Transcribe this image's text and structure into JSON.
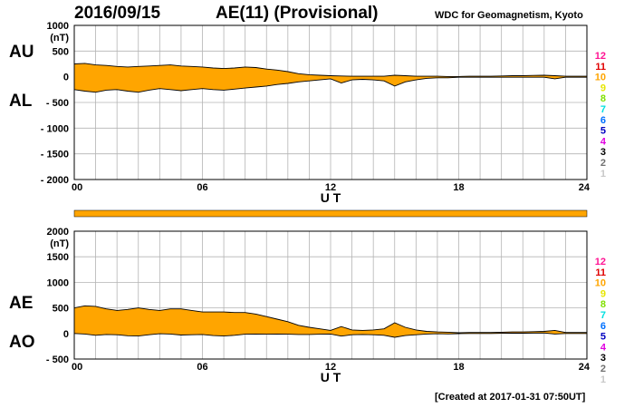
{
  "header": {
    "date": "2016/09/15",
    "index_title": "AE(11) (Provisional)",
    "source": "WDC for Geomagnetism, Kyoto"
  },
  "footer": {
    "created": "[Created at 2017-01-31 07:50UT]"
  },
  "colors": {
    "fill": "#ffa500",
    "outline": "#000000",
    "grid": "#b4b4b4"
  },
  "chart_data": [
    {
      "type": "area",
      "panel": "AU/AL",
      "series_labels": [
        "AU",
        "AL"
      ],
      "unit_label": "(nT)",
      "xlabel": "U T",
      "xlim": [
        0,
        24
      ],
      "ylim": [
        -2000,
        1000
      ],
      "x_ticks": [
        "00",
        "06",
        "12",
        "18",
        "24"
      ],
      "y_ticks": [
        "1000",
        "500",
        "0",
        "- 500",
        "- 1000",
        "- 1500",
        "- 2000"
      ],
      "x": [
        0,
        0.5,
        1,
        1.5,
        2,
        2.5,
        3,
        3.5,
        4,
        4.5,
        5,
        5.5,
        6,
        6.5,
        7,
        7.5,
        8,
        8.5,
        9,
        9.5,
        10,
        10.5,
        11,
        11.5,
        12,
        12.5,
        13,
        13.5,
        14,
        14.5,
        15,
        15.5,
        16,
        16.5,
        17,
        17.5,
        18,
        18.5,
        19,
        19.5,
        20,
        20.5,
        21,
        21.5,
        22,
        22.5,
        23,
        23.5,
        24
      ],
      "series": [
        {
          "name": "AU",
          "values": [
            250,
            260,
            230,
            220,
            200,
            190,
            200,
            210,
            220,
            230,
            210,
            200,
            190,
            170,
            160,
            170,
            190,
            180,
            150,
            130,
            100,
            60,
            40,
            30,
            20,
            15,
            10,
            10,
            10,
            10,
            30,
            20,
            10,
            10,
            10,
            5,
            5,
            10,
            10,
            10,
            15,
            20,
            20,
            25,
            30,
            20,
            10,
            10,
            10
          ]
        },
        {
          "name": "AL",
          "values": [
            -250,
            -280,
            -300,
            -260,
            -250,
            -280,
            -300,
            -260,
            -230,
            -250,
            -270,
            -250,
            -230,
            -250,
            -260,
            -240,
            -220,
            -200,
            -180,
            -150,
            -130,
            -100,
            -80,
            -60,
            -40,
            -120,
            -60,
            -50,
            -60,
            -80,
            -180,
            -100,
            -60,
            -30,
            -20,
            -20,
            -10,
            -10,
            -10,
            -10,
            -10,
            -10,
            -10,
            -10,
            -10,
            -40,
            -10,
            -10,
            -10
          ]
        }
      ]
    },
    {
      "type": "area",
      "panel": "AE/AO",
      "series_labels": [
        "AE",
        "AO"
      ],
      "unit_label": "(nT)",
      "xlabel": "U T",
      "xlim": [
        0,
        24
      ],
      "ylim": [
        -500,
        2000
      ],
      "x_ticks": [
        "00",
        "06",
        "12",
        "18",
        "24"
      ],
      "y_ticks": [
        "2000",
        "1500",
        "1000",
        "500",
        "0",
        "- 500"
      ],
      "x": [
        0,
        0.5,
        1,
        1.5,
        2,
        2.5,
        3,
        3.5,
        4,
        4.5,
        5,
        5.5,
        6,
        6.5,
        7,
        7.5,
        8,
        8.5,
        9,
        9.5,
        10,
        10.5,
        11,
        11.5,
        12,
        12.5,
        13,
        13.5,
        14,
        14.5,
        15,
        15.5,
        16,
        16.5,
        17,
        17.5,
        18,
        18.5,
        19,
        19.5,
        20,
        20.5,
        21,
        21.5,
        22,
        22.5,
        23,
        23.5,
        24
      ],
      "series": [
        {
          "name": "AE",
          "values": [
            500,
            540,
            530,
            480,
            450,
            470,
            500,
            470,
            450,
            480,
            480,
            450,
            420,
            420,
            420,
            410,
            410,
            380,
            330,
            280,
            230,
            160,
            120,
            90,
            60,
            135,
            70,
            60,
            70,
            90,
            210,
            120,
            70,
            40,
            30,
            25,
            15,
            20,
            20,
            20,
            25,
            30,
            30,
            35,
            40,
            60,
            20,
            20,
            20
          ]
        },
        {
          "name": "AO",
          "values": [
            0,
            -10,
            -35,
            -20,
            -25,
            -45,
            -50,
            -25,
            -5,
            -10,
            -30,
            -25,
            -20,
            -40,
            -50,
            -35,
            -15,
            -10,
            -15,
            -10,
            -15,
            -20,
            -20,
            -15,
            -10,
            -52,
            -25,
            -20,
            -25,
            -35,
            -75,
            -40,
            -25,
            -10,
            -5,
            -8,
            -3,
            0,
            0,
            0,
            3,
            5,
            5,
            8,
            10,
            -10,
            0,
            0,
            0
          ]
        }
      ]
    }
  ],
  "station_count": {
    "labels": [
      "12",
      "11",
      "10",
      "9",
      "8",
      "7",
      "6",
      "5",
      "4",
      "3",
      "2",
      "1"
    ],
    "colors": [
      "#ff1493",
      "#e00000",
      "#ffa500",
      "#e6e600",
      "#80e000",
      "#00e0e0",
      "#0070ff",
      "#0000c0",
      "#e000e0",
      "#000000",
      "#707070",
      "#c8c8c8"
    ],
    "bar_value": "11"
  }
}
